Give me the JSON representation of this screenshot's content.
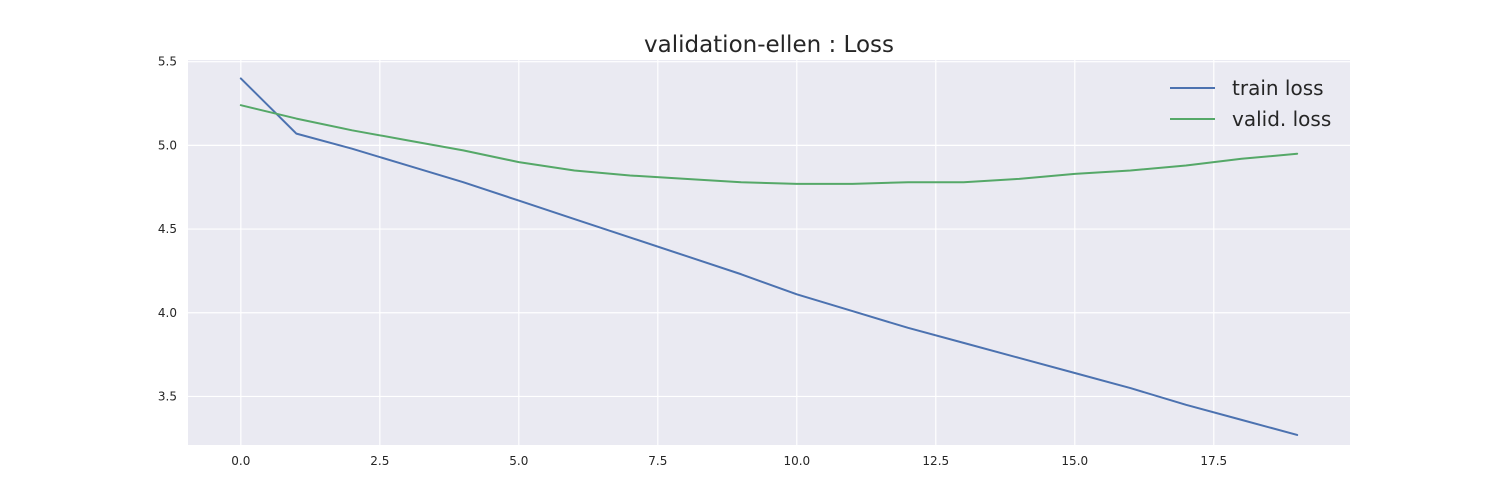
{
  "chart_data": {
    "type": "line",
    "title": "validation-ellen : Loss",
    "xlabel": "",
    "ylabel": "",
    "xlim": [
      -0.95,
      19.95
    ],
    "ylim": [
      3.21,
      5.51
    ],
    "grid": true,
    "legend_position": "top-right",
    "x_ticks": [
      0.0,
      2.5,
      5.0,
      7.5,
      10.0,
      12.5,
      15.0,
      17.5
    ],
    "x_tick_labels": [
      "0.0",
      "2.5",
      "5.0",
      "7.5",
      "10.0",
      "12.5",
      "15.0",
      "17.5"
    ],
    "y_ticks": [
      3.5,
      4.0,
      4.5,
      5.0,
      5.5
    ],
    "y_tick_labels": [
      "3.5",
      "4.0",
      "4.5",
      "5.0",
      "5.5"
    ],
    "x": [
      0,
      1,
      2,
      3,
      4,
      5,
      6,
      7,
      8,
      9,
      10,
      11,
      12,
      13,
      14,
      15,
      16,
      17,
      18,
      19
    ],
    "series": [
      {
        "name": "train loss",
        "color": "#4c72b0",
        "values": [
          5.4,
          5.07,
          4.98,
          4.88,
          4.78,
          4.67,
          4.56,
          4.45,
          4.34,
          4.23,
          4.11,
          4.01,
          3.91,
          3.82,
          3.73,
          3.64,
          3.55,
          3.45,
          3.36,
          3.27
        ]
      },
      {
        "name": "valid. loss",
        "color": "#55a868",
        "values": [
          5.24,
          5.16,
          5.09,
          5.03,
          4.97,
          4.9,
          4.85,
          4.82,
          4.8,
          4.78,
          4.77,
          4.77,
          4.78,
          4.78,
          4.8,
          4.83,
          4.85,
          4.88,
          4.92,
          4.95
        ]
      }
    ]
  },
  "style": {
    "plot_background": "#eaeaf2",
    "grid_color": "#ffffff",
    "text_color": "#262626"
  }
}
